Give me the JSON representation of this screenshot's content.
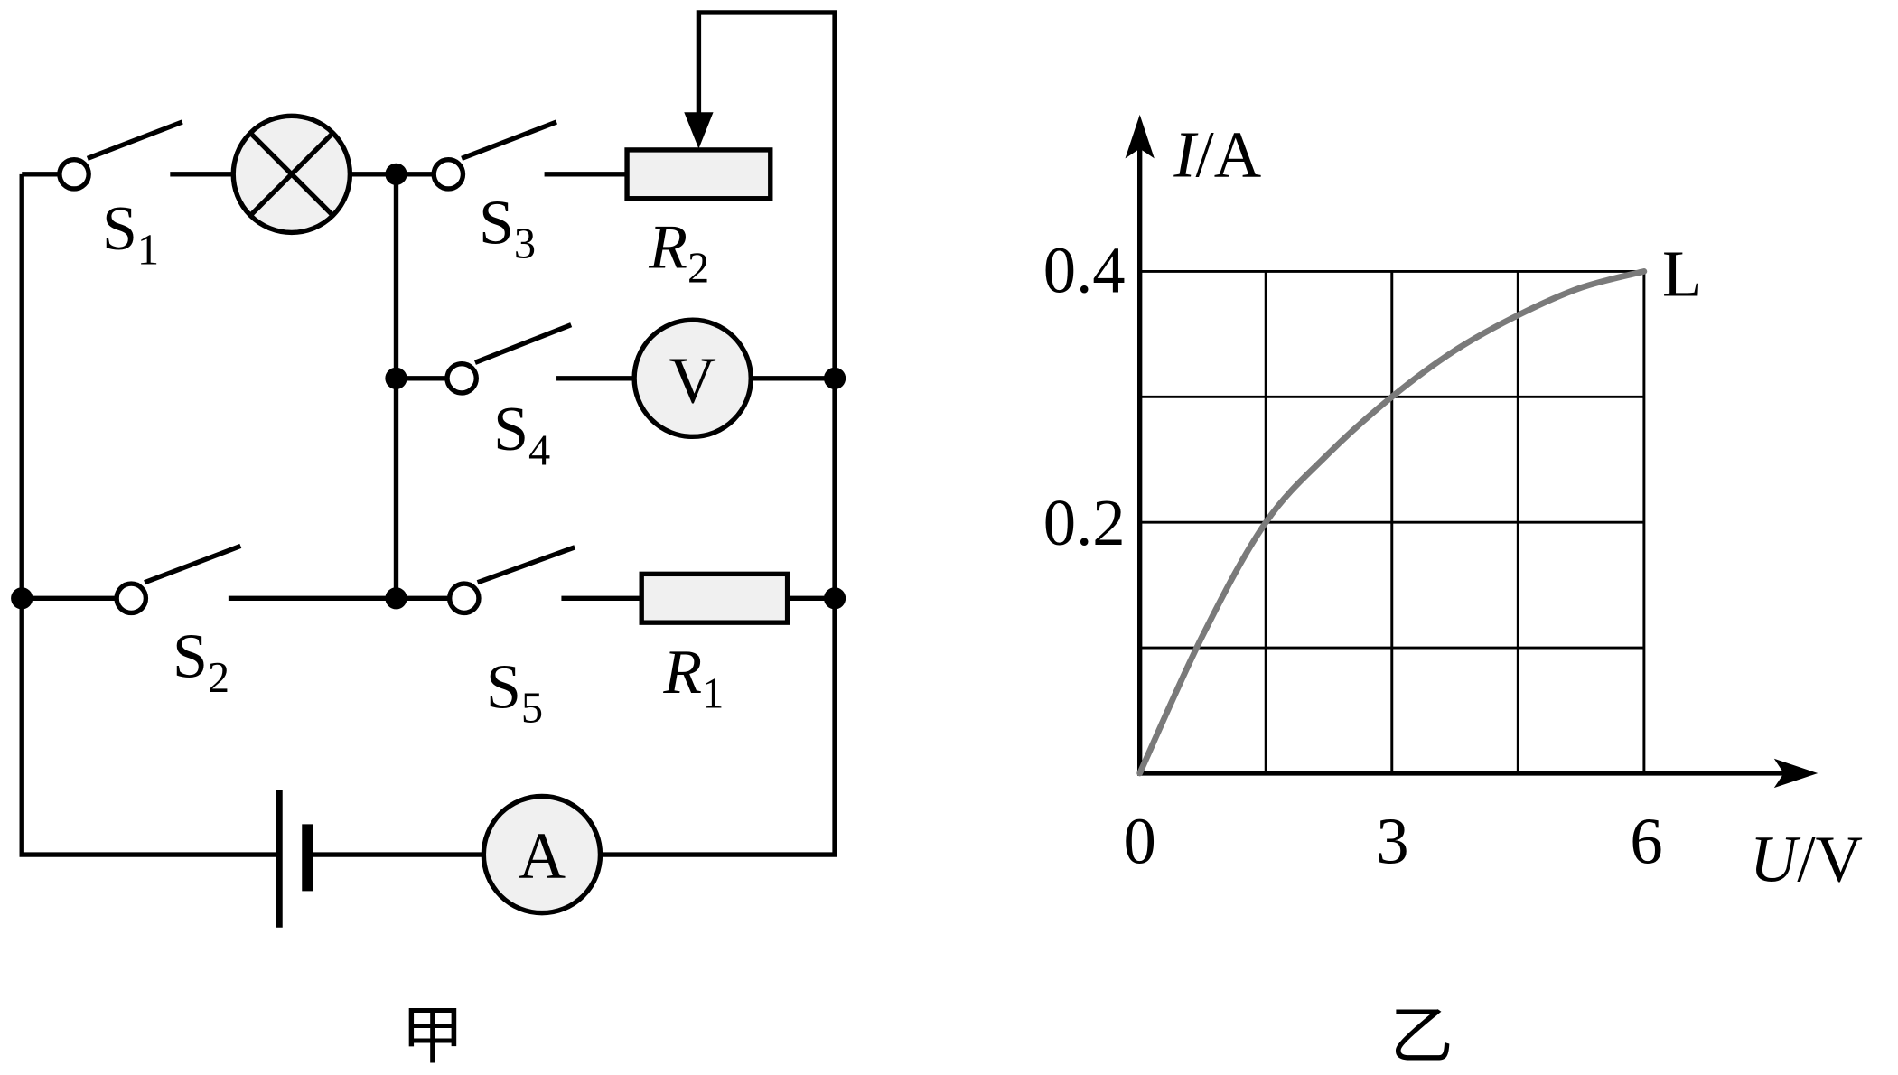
{
  "circuit": {
    "caption": "甲",
    "switches": [
      {
        "label": "S",
        "sub": "1"
      },
      {
        "label": "S",
        "sub": "2"
      },
      {
        "label": "S",
        "sub": "3"
      },
      {
        "label": "S",
        "sub": "4"
      },
      {
        "label": "S",
        "sub": "5"
      }
    ],
    "resistors": [
      {
        "label": "R",
        "sub": "1"
      },
      {
        "label": "R",
        "sub": "2"
      }
    ],
    "voltmeter": "V",
    "ammeter": "A"
  },
  "chart_data": {
    "type": "line",
    "caption": "乙",
    "ylabel_var": "I",
    "ylabel_unit": "/A",
    "xlabel_var": "U",
    "xlabel_unit": "/V",
    "x_ticks": [
      "0",
      "3",
      "6"
    ],
    "y_ticks": [
      "0.2",
      "0.4"
    ],
    "xlim": [
      0,
      6
    ],
    "ylim": [
      0,
      0.4
    ],
    "grid": true,
    "series": [
      {
        "name": "L",
        "color": "#7a7a7a",
        "x": [
          0,
          0.75,
          1.5,
          2.25,
          3,
          3.75,
          4.5,
          5.25,
          6
        ],
        "y": [
          0,
          0.11,
          0.2,
          0.255,
          0.3,
          0.337,
          0.365,
          0.387,
          0.4
        ]
      }
    ]
  }
}
